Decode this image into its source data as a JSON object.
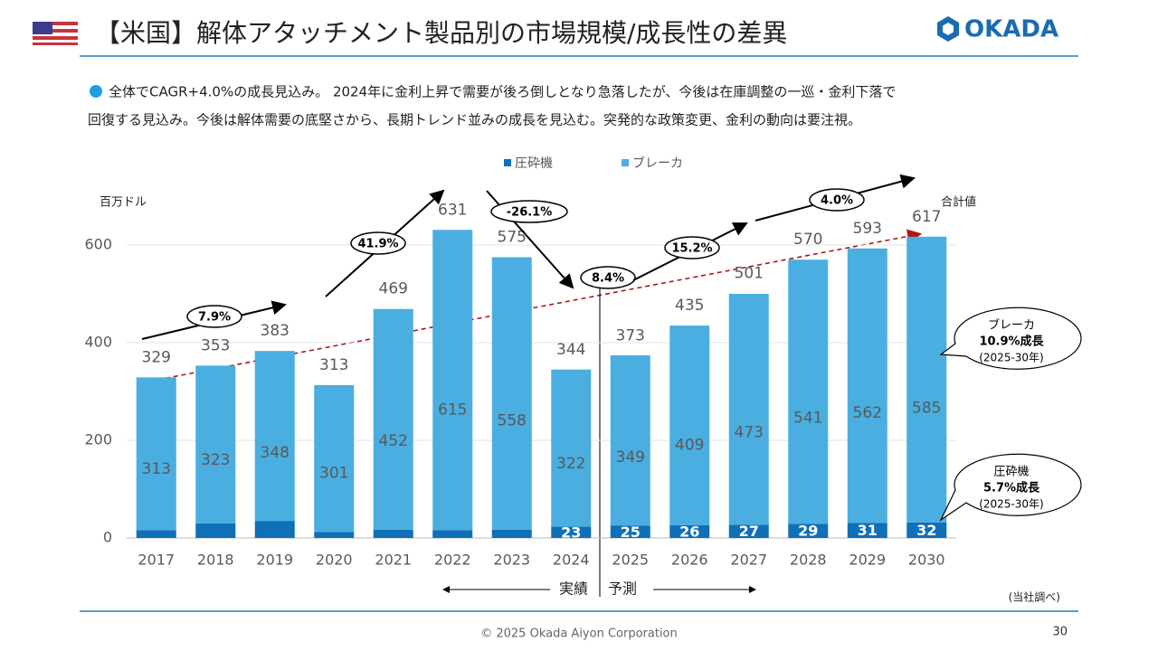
{
  "header": {
    "title": "【米国】解体アタッチメント製品別の市場規模/成長性の差異",
    "logo": "OKADA",
    "headline_lines": [
      "全体でCAGR+4.0%の成長見込み。 2024年に金利上昇で需要が後ろ倒しとなり急落したが、今後は在庫調整の一巡・金利下落で",
      "回復する見込み。今後は解体需要の底堅さから、長期トレンド並みの成長を見込む。突発的な政策変更、金利の動向は要注視。"
    ]
  },
  "chart_data": {
    "type": "bar",
    "stacked": true,
    "y_label": "百万ドル",
    "total_label": "合計値",
    "categories": [
      "2017",
      "2018",
      "2019",
      "2020",
      "2021",
      "2022",
      "2023",
      "2024",
      "2025",
      "2026",
      "2027",
      "2028",
      "2029",
      "2030"
    ],
    "series": [
      {
        "name": "圧砕機",
        "color": "#0f6fb7",
        "values": [
          16,
          30,
          35,
          12,
          17,
          16,
          17,
          23,
          25,
          26,
          27,
          29,
          31,
          32
        ],
        "value_labels": [
          null,
          null,
          null,
          null,
          null,
          null,
          null,
          "23",
          "25",
          "26",
          "27",
          "29",
          "31",
          "32"
        ]
      },
      {
        "name": "ブレーカ",
        "color": "#4aaee0",
        "values": [
          313,
          323,
          348,
          301,
          452,
          615,
          558,
          322,
          349,
          409,
          473,
          541,
          562,
          585
        ]
      }
    ],
    "totals": [
      329,
      353,
      383,
      313,
      469,
      631,
      575,
      344,
      373,
      435,
      501,
      570,
      593,
      617
    ],
    "ylim": [
      0,
      700
    ],
    "yticks": [
      0,
      200,
      400,
      600
    ],
    "grid": true,
    "growth_annotations": [
      "7.9%",
      "41.9%",
      "-26.1%",
      "8.4%",
      "15.2%",
      "4.0%"
    ],
    "actual_label": "実績",
    "forecast_label": "予測",
    "callouts": [
      {
        "lines": [
          "ブレーカ",
          "10.9%成長",
          "(2025-30年)"
        ]
      },
      {
        "lines": [
          "圧砕機",
          "5.7%成長",
          "(2025-30年)"
        ]
      }
    ],
    "source": "(当社調べ)"
  },
  "footer": {
    "copyright": "© 2025 Okada Aiyon Corporation",
    "page": "30"
  }
}
